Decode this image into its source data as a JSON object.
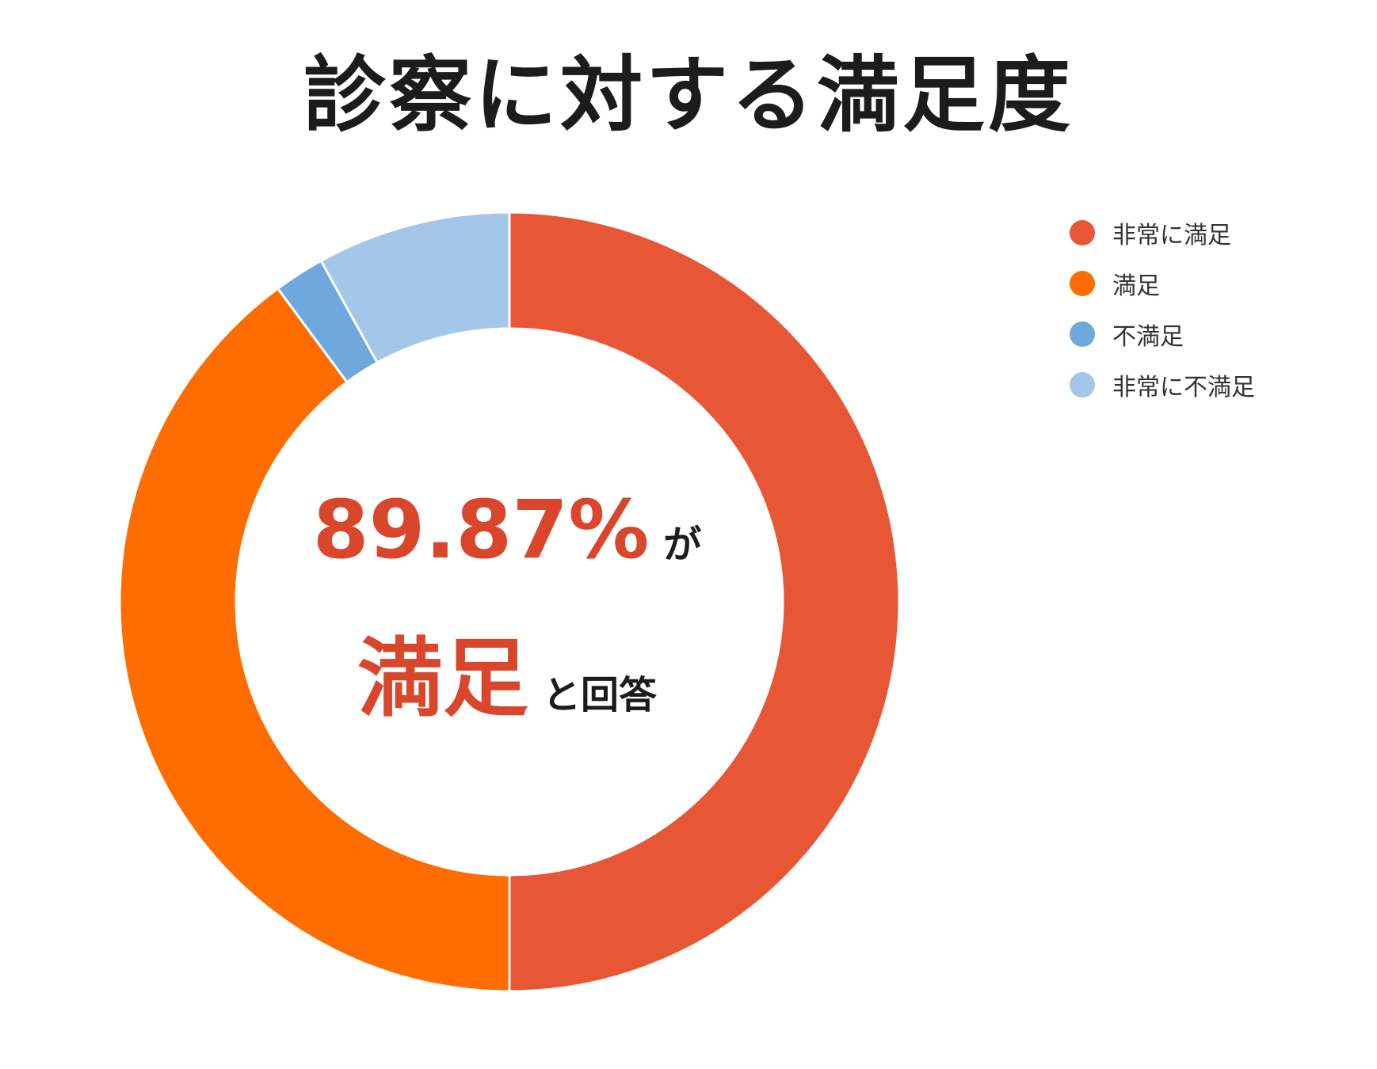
{
  "chart_data": {
    "type": "pie",
    "title": "診察に対する満足度",
    "categories": [
      "非常に満足",
      "満足",
      "不満足",
      "非常に不満足"
    ],
    "values": [
      50.0,
      39.87,
      2.1,
      8.03
    ],
    "colors": [
      "#e85735",
      "#ff6d00",
      "#6fa8dc",
      "#a4c6e8"
    ],
    "legend_position": "top-right",
    "donut": true,
    "center_text": {
      "value": "89.87%",
      "suffix1": "が",
      "emphasis": "満足",
      "suffix2": "と回答"
    }
  }
}
